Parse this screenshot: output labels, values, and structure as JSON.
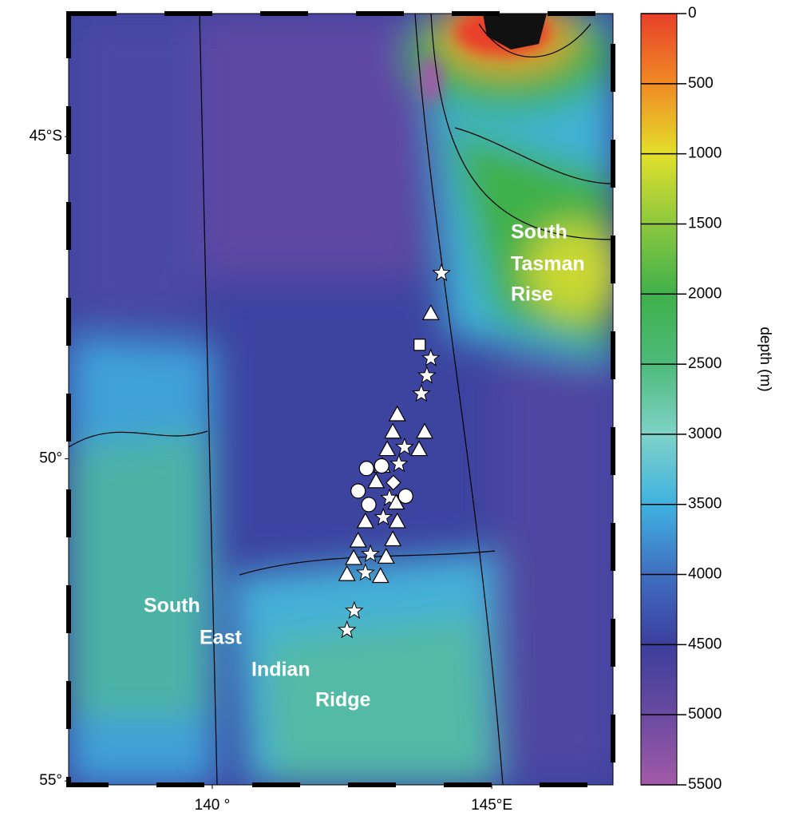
{
  "chart_data": {
    "type": "map",
    "xlim": [
      137.43,
      147.17
    ],
    "ylim": [
      -55.06,
      -43.09
    ],
    "xticks": [
      {
        "value": 140,
        "label": "140 °"
      },
      {
        "value": 145,
        "label": "145°E"
      }
    ],
    "yticks": [
      {
        "value": -45,
        "label": "45°S"
      },
      {
        "value": -50,
        "label": "50°"
      },
      {
        "value": -55,
        "label": "55°"
      }
    ],
    "colorbar": {
      "label": "depth (m)",
      "clim": [
        0,
        5500
      ],
      "ticks": [
        0,
        500,
        1000,
        1500,
        2000,
        2500,
        3000,
        3500,
        4000,
        4500,
        5000,
        5500
      ],
      "colormap": [
        "#e8402a",
        "#f08a24",
        "#e3df2a",
        "#8cc83e",
        "#3fb04a",
        "#4dbb7a",
        "#7fd2c8",
        "#3fb2e0",
        "#3f6fc0",
        "#3b3f9c",
        "#6a4aa0",
        "#a35aa8"
      ]
    },
    "regions": [
      "South",
      "Tasman",
      "Rise",
      "South",
      "East",
      "Indian",
      "Ridge"
    ],
    "markers": [
      {
        "shape": "star",
        "color": "#ffffff",
        "lon": [
          144.1,
          143.91,
          143.84,
          143.74,
          143.44,
          143.34,
          143.17,
          143.06,
          142.83,
          142.74,
          142.54,
          142.41
        ],
        "lat": [
          -47.12,
          -48.44,
          -48.71,
          -48.99,
          -49.82,
          -50.08,
          -50.61,
          -50.91,
          -51.48,
          -51.77,
          -52.36,
          -52.66
        ]
      },
      {
        "shape": "triangle",
        "color": "#ffffff",
        "lon": [
          143.91,
          143.31,
          143.23,
          143.8,
          143.13,
          143.7,
          143.04,
          142.93,
          143.29,
          142.74,
          143.31,
          142.61,
          143.23,
          142.53,
          143.11,
          142.41,
          143.01
        ],
        "lat": [
          -47.74,
          -49.31,
          -49.58,
          -49.58,
          -49.85,
          -49.85,
          -50.11,
          -50.35,
          -50.68,
          -50.97,
          -50.97,
          -51.27,
          -51.25,
          -51.54,
          -51.52,
          -51.79,
          -51.82
        ]
      },
      {
        "shape": "circle",
        "color": "#ffffff",
        "lon": [
          142.76,
          143.03,
          142.61,
          142.8,
          143.46
        ],
        "lat": [
          -50.15,
          -50.11,
          -50.5,
          -50.71,
          -50.58
        ]
      },
      {
        "shape": "square",
        "color": "#ffffff",
        "lon": [
          143.71
        ],
        "lat": [
          -48.23
        ]
      },
      {
        "shape": "diamond",
        "color": "#ffffff",
        "lon": [
          143.24
        ],
        "lat": [
          -50.37
        ]
      }
    ]
  }
}
